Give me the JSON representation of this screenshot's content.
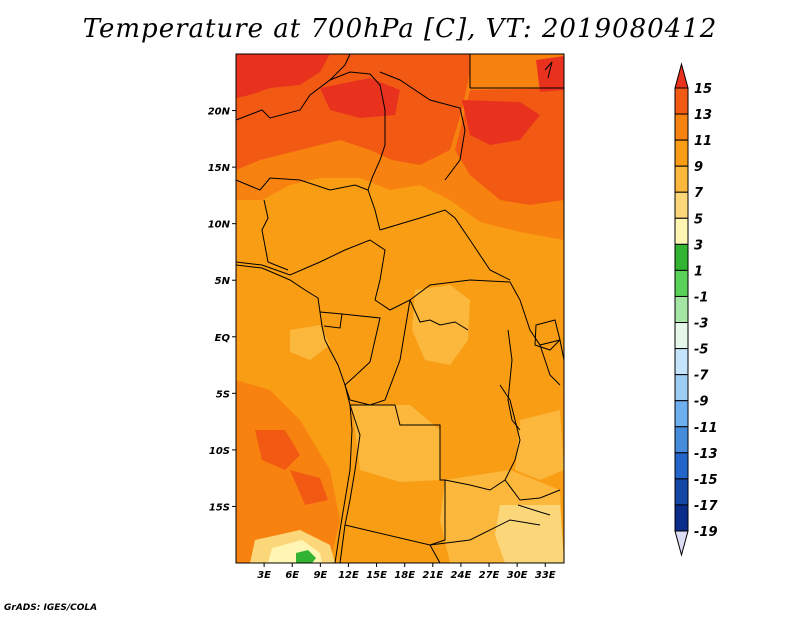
{
  "title": "Temperature at 700hPa [C], VT: 2019080412",
  "credit": "GrADS: IGES/COLA",
  "map": {
    "lon_range": [
      0,
      35
    ],
    "lat_range": [
      -20,
      25
    ],
    "lat_ticks": [
      {
        "value": 20,
        "label": "20N"
      },
      {
        "value": 15,
        "label": "15N"
      },
      {
        "value": 10,
        "label": "10N"
      },
      {
        "value": 5,
        "label": "5N"
      },
      {
        "value": 0,
        "label": "EQ"
      },
      {
        "value": -5,
        "label": "5S"
      },
      {
        "value": -10,
        "label": "10S"
      },
      {
        "value": -15,
        "label": "15S"
      }
    ],
    "lon_ticks": [
      {
        "value": 3,
        "label": "3E"
      },
      {
        "value": 6,
        "label": "6E"
      },
      {
        "value": 9,
        "label": "9E"
      },
      {
        "value": 12,
        "label": "12E"
      },
      {
        "value": 15,
        "label": "15E"
      },
      {
        "value": 18,
        "label": "18E"
      },
      {
        "value": 21,
        "label": "21E"
      },
      {
        "value": 24,
        "label": "24E"
      },
      {
        "value": 27,
        "label": "27E"
      },
      {
        "value": 30,
        "label": "30E"
      },
      {
        "value": 33,
        "label": "33E"
      }
    ]
  },
  "colorbar": {
    "labels": [
      "15",
      "13",
      "11",
      "9",
      "7",
      "5",
      "3",
      "1",
      "-1",
      "-3",
      "-5",
      "-7",
      "-9",
      "-11",
      "-13",
      "-15",
      "-17",
      "-19"
    ],
    "colors": [
      "#e8321e",
      "#f25a14",
      "#f7820f",
      "#f99d14",
      "#fbb83c",
      "#fcd77a",
      "#fff6b4",
      "#32b432",
      "#5ad25a",
      "#a5e6a5",
      "#e6f8ea",
      "#c3e4fa",
      "#9ccdf5",
      "#6eaff0",
      "#468cdc",
      "#2364c8",
      "#1446a5",
      "#0a2d8c",
      "#0a0a5a",
      "#dcdcf5"
    ]
  }
}
